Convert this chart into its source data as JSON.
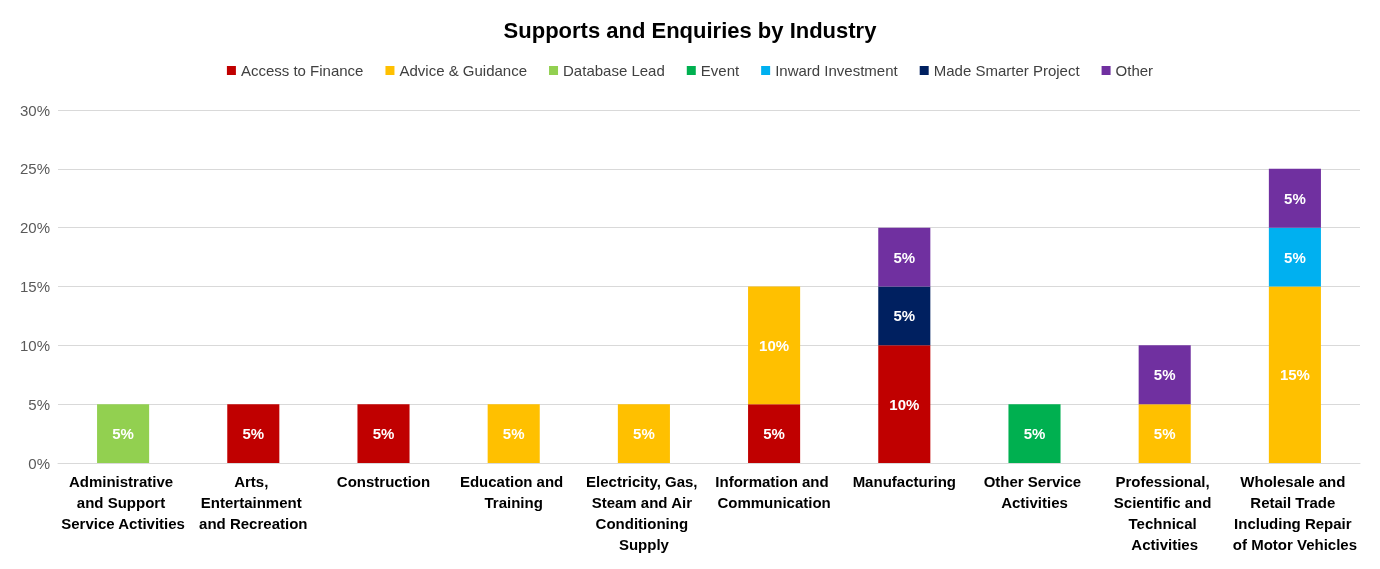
{
  "chart_data": {
    "type": "bar",
    "title": "Supports and Enquiries by Industry",
    "stacked": true,
    "legend": "top",
    "grid": "y",
    "categories": [
      "Administrative and Support Service Activities",
      "Arts, Entertainment and Recreation",
      "Construction",
      "Education and Training",
      "Electricity, Gas, Steam and Air Conditioning Supply",
      "Information and Communication",
      "Manufacturing",
      "Other Service Activities",
      "Professional, Scientific and Technical Activities",
      "Wholesale and Retail Trade Including Repair of Motor Vehicles"
    ],
    "ylim": [
      0,
      30
    ],
    "yticks": [
      {
        "value": 0,
        "label": "0%"
      },
      {
        "value": 5,
        "label": "5%"
      },
      {
        "value": 10,
        "label": "10%"
      },
      {
        "value": 15,
        "label": "15%"
      },
      {
        "value": 20,
        "label": "20%"
      },
      {
        "value": 25,
        "label": "25%"
      },
      {
        "value": 30,
        "label": "30%"
      }
    ],
    "series": [
      {
        "name": "Access to Finance",
        "color": "#c00000",
        "values": [
          null,
          5,
          5,
          null,
          null,
          5,
          10,
          null,
          null,
          null
        ],
        "value_labels": [
          null,
          "5%",
          "5%",
          null,
          null,
          "5%",
          "10%",
          null,
          null,
          null
        ]
      },
      {
        "name": "Advice & Guidance",
        "color": "#ffc000",
        "values": [
          null,
          null,
          null,
          5,
          5,
          10,
          null,
          null,
          5,
          15
        ],
        "value_labels": [
          null,
          null,
          null,
          "5%",
          "5%",
          "10%",
          null,
          null,
          "5%",
          "15%"
        ]
      },
      {
        "name": "Database Lead",
        "color": "#92d050",
        "values": [
          5,
          null,
          null,
          null,
          null,
          null,
          null,
          null,
          null,
          null
        ],
        "value_labels": [
          "5%",
          null,
          null,
          null,
          null,
          null,
          null,
          null,
          null,
          null
        ]
      },
      {
        "name": "Event",
        "color": "#00b050",
        "values": [
          null,
          null,
          null,
          null,
          null,
          null,
          null,
          5,
          null,
          null
        ],
        "value_labels": [
          null,
          null,
          null,
          null,
          null,
          null,
          null,
          "5%",
          null,
          null
        ]
      },
      {
        "name": "Inward Investment",
        "color": "#00b0f0",
        "values": [
          null,
          null,
          null,
          null,
          null,
          null,
          null,
          null,
          null,
          5
        ],
        "value_labels": [
          null,
          null,
          null,
          null,
          null,
          null,
          null,
          null,
          null,
          "5%"
        ]
      },
      {
        "name": "Made Smarter Project",
        "color": "#002060",
        "values": [
          null,
          null,
          null,
          null,
          null,
          null,
          5,
          null,
          null,
          null
        ],
        "value_labels": [
          null,
          null,
          null,
          null,
          null,
          null,
          "5%",
          null,
          null,
          null
        ]
      },
      {
        "name": "Other",
        "color": "#7030a0",
        "values": [
          null,
          null,
          null,
          null,
          null,
          null,
          5,
          null,
          5,
          5
        ],
        "value_labels": [
          null,
          null,
          null,
          null,
          null,
          null,
          "5%",
          null,
          "5%",
          "5%"
        ]
      }
    ]
  }
}
